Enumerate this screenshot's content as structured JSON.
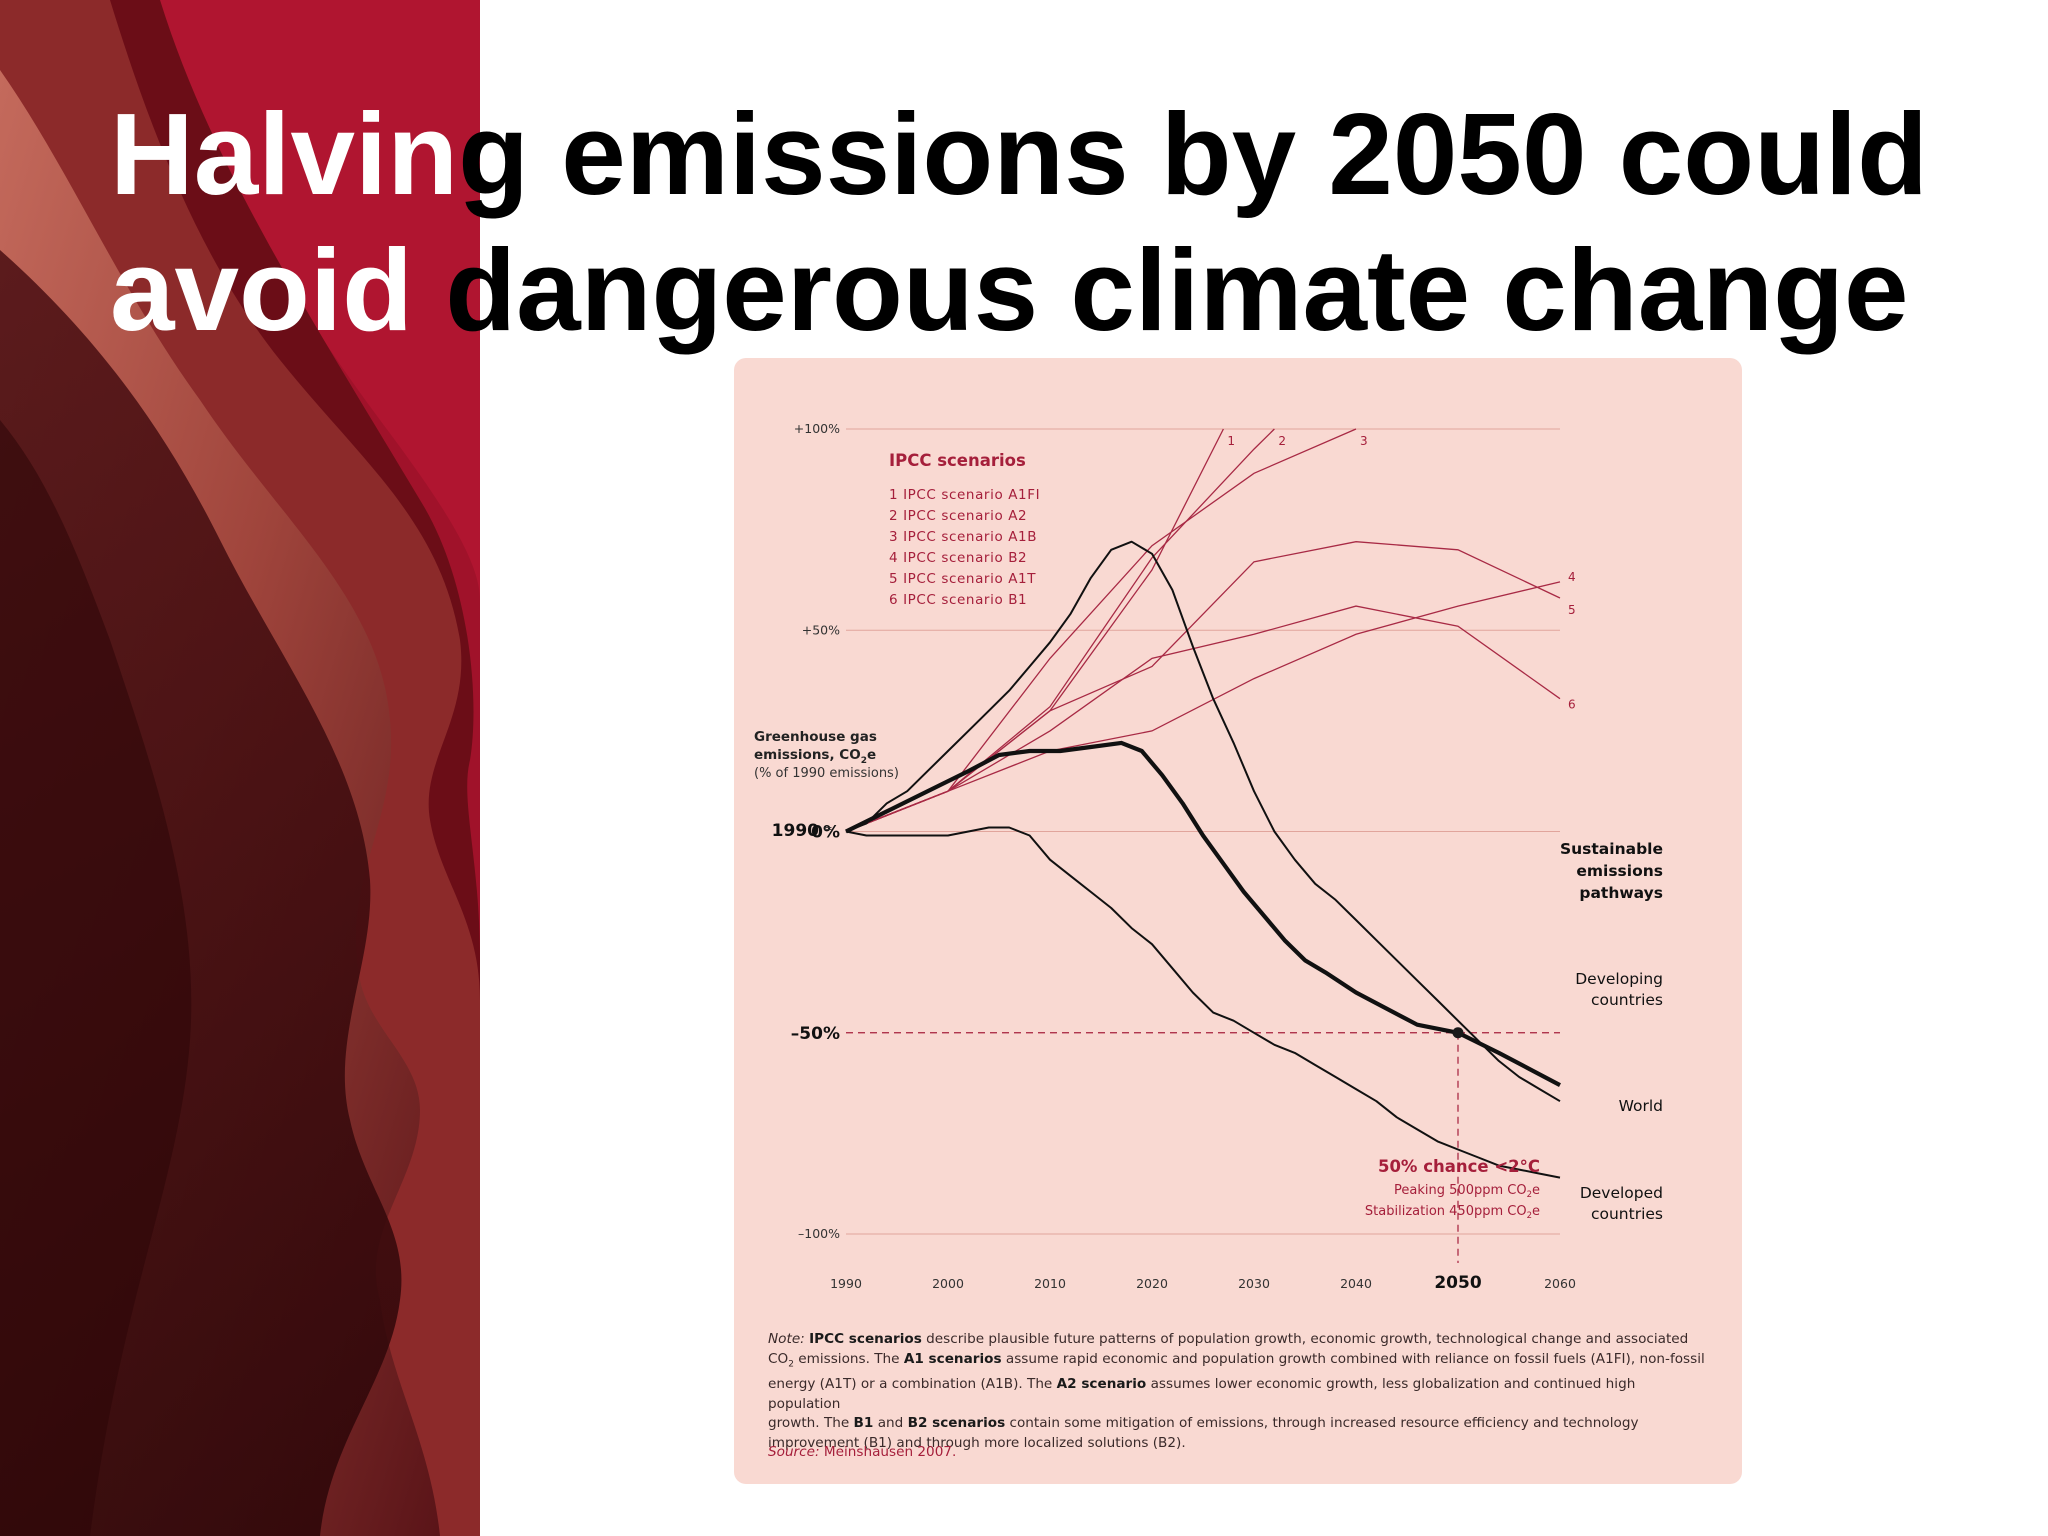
{
  "slide": {
    "title_white_1": "Halvin",
    "title_black_1": "g emissions by 2050 could",
    "title_white_2": "avoid",
    "title_black_2": " dangerous climate change",
    "colors": {
      "brand_red": "#a51f3b",
      "panel_bg": "#f9d9d2",
      "sidebar_dark": "#3a0a0c"
    }
  },
  "chart_data": {
    "type": "line",
    "xlim": [
      1990,
      2060
    ],
    "ylim": [
      -100,
      100
    ],
    "x_ticks": [
      "1990",
      "2000",
      "2010",
      "2020",
      "2030",
      "2040",
      "2050",
      "2060"
    ],
    "y_ticks": [
      {
        "value": 100,
        "label": "+100%"
      },
      {
        "value": 50,
        "label": "+50%"
      },
      {
        "value": 0,
        "label": "0%"
      },
      {
        "value": -50,
        "label": "–50%"
      },
      {
        "value": -100,
        "label": "–100%"
      }
    ],
    "y_axis_label": {
      "line1": "Greenhouse gas",
      "line2_pre": "emissions, CO",
      "line2_sub": "2",
      "line2_post": "e",
      "line3": "(% of 1990 emissions)"
    },
    "baseline_year": "1990",
    "baseline_eq": "=",
    "ipcc_legend": {
      "title": "IPCC scenarios",
      "items": [
        "1 IPCC scenario A1FI",
        "2 IPCC scenario A2",
        "3 IPCC scenario A1B",
        "4 IPCC scenario B2",
        "5 IPCC scenario A1T",
        "6 IPCC scenario B1"
      ]
    },
    "ipcc_series": [
      {
        "label": "1",
        "points": [
          [
            1990,
            0
          ],
          [
            2000,
            10
          ],
          [
            2010,
            30
          ],
          [
            2020,
            65
          ],
          [
            2027,
            100
          ]
        ]
      },
      {
        "label": "2",
        "points": [
          [
            1990,
            0
          ],
          [
            2000,
            10
          ],
          [
            2010,
            31
          ],
          [
            2020,
            68
          ],
          [
            2030,
            95
          ],
          [
            2032,
            100
          ]
        ]
      },
      {
        "label": "3",
        "points": [
          [
            1990,
            0
          ],
          [
            2000,
            10
          ],
          [
            2010,
            43
          ],
          [
            2020,
            71
          ],
          [
            2030,
            89
          ],
          [
            2040,
            100
          ]
        ]
      },
      {
        "label": "4",
        "points": [
          [
            1990,
            0
          ],
          [
            2000,
            10
          ],
          [
            2010,
            20
          ],
          [
            2020,
            25
          ],
          [
            2030,
            38
          ],
          [
            2040,
            49
          ],
          [
            2050,
            56
          ],
          [
            2060,
            62
          ]
        ]
      },
      {
        "label": "5",
        "points": [
          [
            1990,
            0
          ],
          [
            2000,
            10
          ],
          [
            2010,
            30
          ],
          [
            2020,
            41
          ],
          [
            2030,
            67
          ],
          [
            2040,
            72
          ],
          [
            2050,
            70
          ],
          [
            2060,
            58
          ]
        ]
      },
      {
        "label": "6",
        "points": [
          [
            1990,
            0
          ],
          [
            2000,
            10
          ],
          [
            2010,
            25
          ],
          [
            2020,
            43
          ],
          [
            2030,
            49
          ],
          [
            2040,
            56
          ],
          [
            2050,
            51
          ],
          [
            2060,
            33
          ]
        ]
      }
    ],
    "pathways_label": [
      "Sustainable",
      "emissions",
      "pathways"
    ],
    "pathways": [
      {
        "name": "Developing countries",
        "label_lines": [
          "Developing",
          "countries"
        ],
        "weight": "thin",
        "points": [
          [
            1990,
            0
          ],
          [
            1992,
            2
          ],
          [
            1994,
            7
          ],
          [
            1996,
            10
          ],
          [
            1998,
            15
          ],
          [
            2000,
            20
          ],
          [
            2002,
            25
          ],
          [
            2004,
            30
          ],
          [
            2006,
            35
          ],
          [
            2008,
            41
          ],
          [
            2010,
            47
          ],
          [
            2012,
            54
          ],
          [
            2014,
            63
          ],
          [
            2016,
            70
          ],
          [
            2018,
            72
          ],
          [
            2020,
            69
          ],
          [
            2022,
            60
          ],
          [
            2024,
            46
          ],
          [
            2026,
            33
          ],
          [
            2028,
            22
          ],
          [
            2030,
            10
          ],
          [
            2032,
            0
          ],
          [
            2034,
            -7
          ],
          [
            2036,
            -13
          ],
          [
            2038,
            -17
          ],
          [
            2040,
            -22
          ],
          [
            2042,
            -27
          ],
          [
            2044,
            -32
          ],
          [
            2046,
            -37
          ],
          [
            2048,
            -42
          ],
          [
            2050,
            -47
          ],
          [
            2052,
            -52
          ],
          [
            2054,
            -57
          ],
          [
            2056,
            -61
          ],
          [
            2058,
            -64
          ],
          [
            2060,
            -67
          ]
        ]
      },
      {
        "name": "World",
        "label_lines": [
          "World"
        ],
        "weight": "thick",
        "points": [
          [
            1990,
            0
          ],
          [
            1994,
            5
          ],
          [
            1998,
            10
          ],
          [
            2002,
            15
          ],
          [
            2005,
            19
          ],
          [
            2008,
            20
          ],
          [
            2011,
            20
          ],
          [
            2014,
            21
          ],
          [
            2017,
            22
          ],
          [
            2019,
            20
          ],
          [
            2021,
            14
          ],
          [
            2023,
            7
          ],
          [
            2025,
            -1
          ],
          [
            2027,
            -8
          ],
          [
            2029,
            -15
          ],
          [
            2031,
            -21
          ],
          [
            2033,
            -27
          ],
          [
            2035,
            -32
          ],
          [
            2037,
            -35
          ],
          [
            2040,
            -40
          ],
          [
            2043,
            -44
          ],
          [
            2046,
            -48
          ],
          [
            2050,
            -50
          ],
          [
            2054,
            -55
          ],
          [
            2057,
            -59
          ],
          [
            2060,
            -63
          ]
        ]
      },
      {
        "name": "Developed countries",
        "label_lines": [
          "Developed",
          "countries"
        ],
        "weight": "thin",
        "points": [
          [
            1990,
            0
          ],
          [
            1992,
            -1
          ],
          [
            1995,
            -1
          ],
          [
            1998,
            -1
          ],
          [
            2000,
            -1
          ],
          [
            2002,
            0
          ],
          [
            2004,
            1
          ],
          [
            2006,
            1
          ],
          [
            2008,
            -1
          ],
          [
            2010,
            -7
          ],
          [
            2012,
            -11
          ],
          [
            2014,
            -15
          ],
          [
            2016,
            -19
          ],
          [
            2018,
            -24
          ],
          [
            2020,
            -28
          ],
          [
            2022,
            -34
          ],
          [
            2024,
            -40
          ],
          [
            2026,
            -45
          ],
          [
            2028,
            -47
          ],
          [
            2030,
            -50
          ],
          [
            2032,
            -53
          ],
          [
            2034,
            -55
          ],
          [
            2036,
            -58
          ],
          [
            2038,
            -61
          ],
          [
            2040,
            -64
          ],
          [
            2042,
            -67
          ],
          [
            2044,
            -71
          ],
          [
            2046,
            -74
          ],
          [
            2048,
            -77
          ],
          [
            2050,
            -79
          ],
          [
            2052,
            -81
          ],
          [
            2054,
            -83
          ],
          [
            2056,
            -84
          ],
          [
            2058,
            -85
          ],
          [
            2060,
            -86
          ]
        ]
      }
    ],
    "marker": {
      "x": 2050,
      "y": -50
    },
    "chance_note": {
      "title": "50% chance <2°C",
      "l1_pre": "Peaking 500ppm CO",
      "l1_sub": "2",
      "l1_post": "e",
      "l2_pre": "Stabilization 450ppm CO",
      "l2_sub": "2",
      "l2_post": "e"
    }
  },
  "footnote": {
    "note": "Note:",
    "t1": "IPCC scenarios",
    "t2": " describe plausible future patterns of population growth, economic growth, technological change and associated",
    "t3_pre": "CO",
    "t3_sub": "2",
    "t3_mid": " emissions. The ",
    "t4": "A1 scenarios",
    "t5": " assume rapid economic and population growth combined with reliance on fossil fuels (A1FI), non-fossil",
    "t6": "energy (A1T) or a combination (A1B). The ",
    "t7": "A2 scenario",
    "t8": " assumes lower economic growth, less globalization and continued high population",
    "t9": "growth. The ",
    "t10": "B1",
    "t11": " and ",
    "t12": "B2 scenarios",
    "t13": " contain some mitigation of emissions, through increased resource efficiency and technology",
    "t14": "improvement (B1) and through more localized solutions (B2).",
    "source_label": "Source:",
    "source_text": " Meinshausen 2007."
  }
}
